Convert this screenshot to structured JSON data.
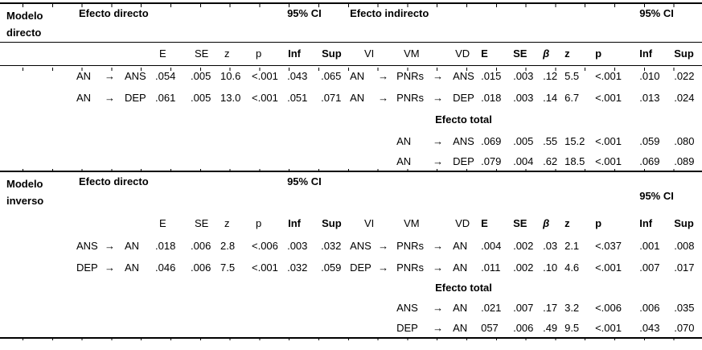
{
  "page": {
    "background_color": "#ffffff",
    "text_color": "#000000",
    "rule_color": "#000000"
  },
  "table": {
    "sections": [
      {
        "model": "Modelo directo",
        "direct": {
          "label": "Efecto directo",
          "ci_label": "95% CI",
          "columns": [
            "E",
            "SE",
            "z",
            "p",
            "Inf",
            "Sup"
          ],
          "rows": [
            {
              "vi": "AN",
              "arrow": "→",
              "vd": "ANS",
              "E": ".054",
              "SE": ".005",
              "z": "10.6",
              "p": "<.001",
              "Inf": ".043",
              "Sup": ".065"
            },
            {
              "vi": "AN",
              "arrow": "→",
              "vd": "DEP",
              "E": ".061",
              "SE": ".005",
              "z": "13.0",
              "p": "<.001",
              "Inf": ".051",
              "Sup": ".071"
            }
          ]
        },
        "indirect": {
          "label": "Efecto indirecto",
          "ci_label": "95% CI",
          "columns": [
            "VI",
            "VM",
            "VD",
            "E",
            "SE",
            "β",
            "z",
            "p",
            "Inf",
            "Sup"
          ],
          "rows": [
            {
              "vi": "AN",
              "arrow1": "→",
              "vm": "PNRs",
              "arrow2": "→",
              "vd": "ANS",
              "E": ".015",
              "SE": ".003",
              "beta": ".12",
              "z": "5.5",
              "p": "<.001",
              "Inf": ".010",
              "Sup": ".022"
            },
            {
              "vi": "AN",
              "arrow1": "→",
              "vm": "PNRs",
              "arrow2": "→",
              "vd": "DEP",
              "E": ".018",
              "SE": ".003",
              "beta": ".14",
              "z": "6.7",
              "p": "<.001",
              "Inf": ".013",
              "Sup": ".024"
            }
          ]
        },
        "total": {
          "label": "Efecto total",
          "rows": [
            {
              "v": "AN",
              "arrow": "→",
              "vd": "ANS",
              "E": ".069",
              "SE": ".005",
              "beta": ".55",
              "z": "15.2",
              "p": "<.001",
              "Inf": ".059",
              "Sup": ".080"
            },
            {
              "v": "AN",
              "arrow": "→",
              "vd": "DEP",
              "E": ".079",
              "SE": ".004",
              "beta": ".62",
              "z": "18.5",
              "p": "<.001",
              "Inf": ".069",
              "Sup": ".089"
            }
          ]
        }
      },
      {
        "model": "Modelo inverso",
        "direct": {
          "label": "Efecto directo",
          "ci_label": "95% CI",
          "columns": [
            "E",
            "SE",
            "z",
            "p",
            "Inf",
            "Sup"
          ],
          "rows": [
            {
              "vi": "ANS",
              "arrow": "→",
              "vd": "AN",
              "E": ".018",
              "SE": ".006",
              "z": "2.8",
              "p": "<.006",
              "Inf": ".003",
              "Sup": ".032"
            },
            {
              "vi": "DEP",
              "arrow": "→",
              "vd": "AN",
              "E": ".046",
              "SE": ".006",
              "z": "7.5",
              "p": "<.001",
              "Inf": ".032",
              "Sup": ".059"
            }
          ]
        },
        "indirect": {
          "label": "",
          "ci_label": "95% CI",
          "columns": [
            "VI",
            "VM",
            "VD",
            "E",
            "SE",
            "β",
            "z",
            "p",
            "Inf",
            "Sup"
          ],
          "rows": [
            {
              "vi": "ANS",
              "arrow1": "→",
              "vm": "PNRs",
              "arrow2": "→",
              "vd": "AN",
              "E": ".004",
              "SE": ".002",
              "beta": ".03",
              "z": "2.1",
              "p": "<.037",
              "Inf": ".001",
              "Sup": ".008"
            },
            {
              "vi": "DEP",
              "arrow1": "→",
              "vm": "PNRs",
              "arrow2": "→",
              "vd": "AN",
              "E": ".011",
              "SE": ".002",
              "beta": ".10",
              "z": "4.6",
              "p": "<.001",
              "Inf": ".007",
              "Sup": ".017"
            }
          ]
        },
        "total": {
          "label": "Efecto total",
          "rows": [
            {
              "v": "ANS",
              "arrow": "→",
              "vd": "AN",
              "E": ".021",
              "SE": ".007",
              "beta": ".17",
              "z": "3.2",
              "p": "<.006",
              "Inf": ".006",
              "Sup": ".035"
            },
            {
              "v": "DEP",
              "arrow": "→",
              "vd": "AN",
              "E": "057",
              "SE": ".006",
              "beta": ".49",
              "z": "9.5",
              "p": "<.001",
              "Inf": ".043",
              "Sup": ".070"
            }
          ]
        }
      }
    ]
  }
}
